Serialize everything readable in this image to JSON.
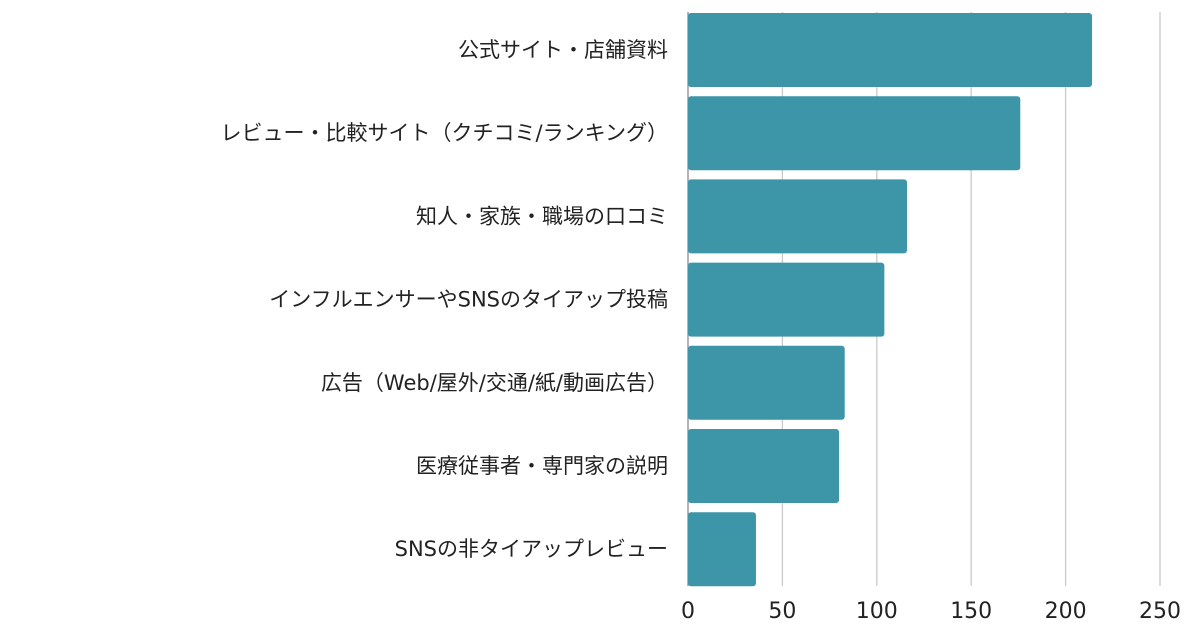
{
  "colors": {
    "bar": "#3d96a8",
    "grid": "#c9c9cf",
    "text": "#222222"
  },
  "chart_data": {
    "type": "bar",
    "orientation": "horizontal",
    "title": "",
    "xlabel": "",
    "ylabel": "",
    "xlim": [
      0,
      250
    ],
    "xticks": [
      0,
      50,
      100,
      150,
      200,
      250
    ],
    "grid": true,
    "legend": "none",
    "categories": [
      "公式サイト・店舗資料",
      "レビュー・比較サイト（クチコミ/ランキング）",
      "知人・家族・職場の口コミ",
      "インフルエンサーやSNSのタイアップ投稿",
      "広告（Web/屋外/交通/紙/動画広告）",
      "医療従事者・専門家の説明",
      "SNSの非タイアップレビュー"
    ],
    "values": [
      214,
      176,
      116,
      104,
      83,
      80,
      36
    ]
  }
}
